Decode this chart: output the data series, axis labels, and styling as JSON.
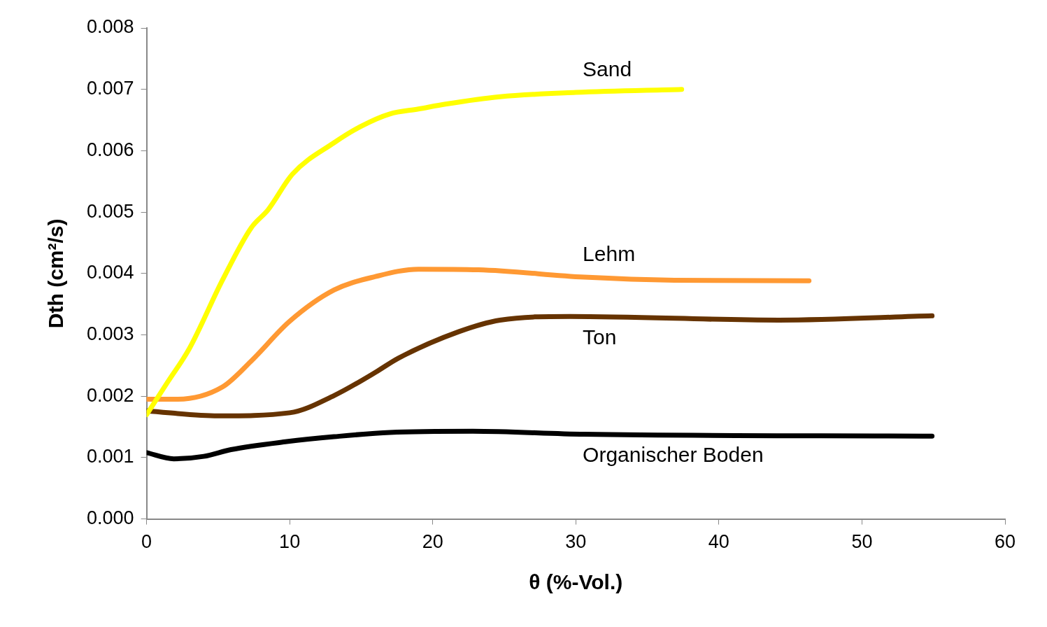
{
  "chart_data": {
    "type": "line",
    "xlabel": "θ (%-Vol.)",
    "ylabel": "Dth (cm²/s)",
    "xlim": [
      0,
      60
    ],
    "xticks": [
      0,
      10,
      20,
      30,
      40,
      50,
      60
    ],
    "ylim": [
      0,
      0.008
    ],
    "yticks": [
      {
        "value": 0,
        "label": "0.000"
      },
      0.001,
      0.002,
      0.003,
      0.004,
      0.005,
      0.006,
      0.007,
      0.008
    ],
    "grid": false,
    "legend": false,
    "marker": "none",
    "line_style": "solid",
    "series": [
      {
        "name": "Sand",
        "color": "#ffff00",
        "x": [
          0,
          1.5,
          3,
          5.3,
          7.3,
          8.5,
          10.2,
          13.1,
          15,
          17,
          19,
          20.9,
          24.7,
          30,
          37.4
        ],
        "values": [
          0.0017,
          0.00224,
          0.00278,
          0.00389,
          0.00474,
          0.00504,
          0.00562,
          0.00613,
          0.0064,
          0.0066,
          0.00668,
          0.00676,
          0.00688,
          0.00695,
          0.007
        ]
      },
      {
        "name": "Lehm",
        "color": "#ff9933",
        "x": [
          0,
          2.1,
          5.3,
          7.3,
          10,
          13.1,
          16,
          19,
          23.2,
          30.6,
          36.9,
          46.3
        ],
        "values": [
          0.00195,
          0.00195,
          0.00215,
          0.00257,
          0.00322,
          0.00373,
          0.00395,
          0.00407,
          0.00406,
          0.00394,
          0.00389,
          0.00388
        ]
      },
      {
        "name": "Ton",
        "color": "#663300",
        "x": [
          0,
          5,
          10,
          13.1,
          16,
          17.6,
          21.8,
          24.7,
          29.6,
          44.2,
          54.9
        ],
        "values": [
          0.00176,
          0.00168,
          0.00173,
          0.00201,
          0.00239,
          0.00262,
          0.00305,
          0.00324,
          0.0033,
          0.00324,
          0.00331
        ]
      },
      {
        "name": "Organischer Boden",
        "color": "#000000",
        "x": [
          0,
          1.9,
          4,
          5.9,
          9.8,
          13.1,
          17,
          22.8,
          30.6,
          54.9
        ],
        "values": [
          0.00108,
          0.00098,
          0.00102,
          0.00113,
          0.00126,
          0.00134,
          0.00141,
          0.00143,
          0.00138,
          0.00135
        ]
      }
    ]
  }
}
